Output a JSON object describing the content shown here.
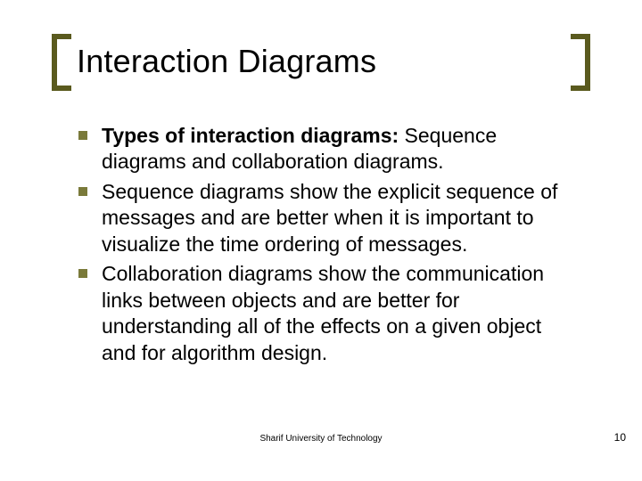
{
  "title": "Interaction Diagrams",
  "bullets": [
    {
      "bold": "Types of interaction diagrams:",
      "rest": " Sequence diagrams and collaboration diagrams."
    },
    {
      "bold": "",
      "rest": "Sequence diagrams show the explicit sequence of messages and are better when it is important to visualize the time ordering of messages."
    },
    {
      "bold": "",
      "rest": "Collaboration diagrams show the communication links between objects and are better for understanding all of the effects on a given object and for algorithm design."
    }
  ],
  "footer": "Sharif University of Technology",
  "page": "10",
  "colors": {
    "bracket": "#5a5a1e",
    "bullet": "#7a7a3a",
    "text": "#000000",
    "bg": "#ffffff"
  },
  "fontsize": {
    "title": 36,
    "body": 23,
    "footer": 10,
    "page": 12
  }
}
